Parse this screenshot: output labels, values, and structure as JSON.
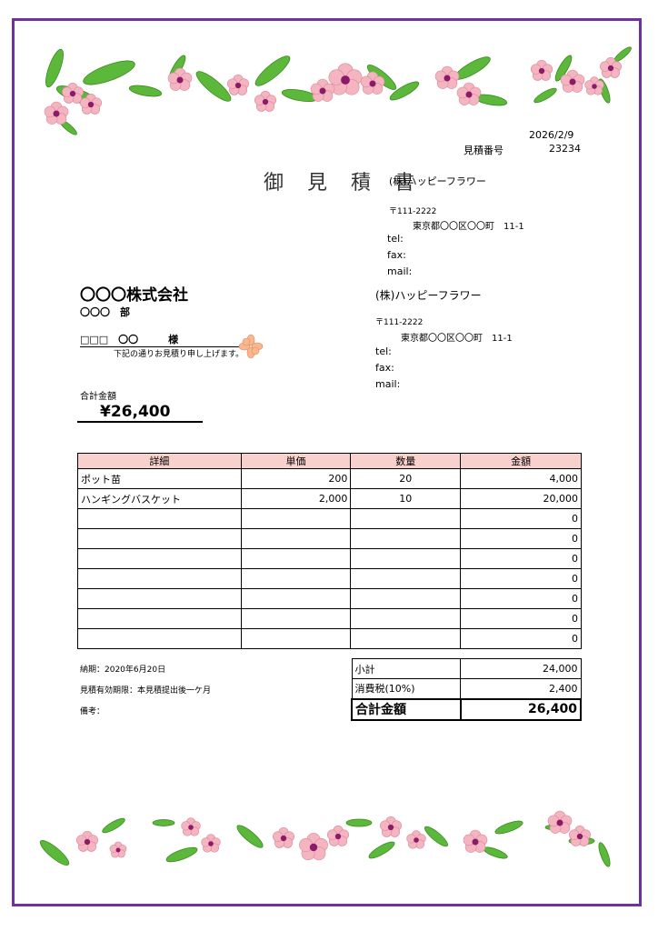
{
  "colors": {
    "border": "#7030a0",
    "header_bg": "#f8d0cc",
    "leaf": "#5cb83a",
    "petal": "#f4b4c0",
    "center": "#8b1a6b"
  },
  "header": {
    "date": "2026/2/9",
    "quote_no_label": "見積番号",
    "quote_no": "23234",
    "title": "御　見　積　書"
  },
  "sender_overlap": {
    "name": "(株)ハッピーフラワー",
    "postal": "〒111-2222",
    "address": "東京都〇〇区〇〇町　11-1",
    "tel": "tel:",
    "fax": "fax:",
    "mail": "mail:"
  },
  "sender": {
    "name": "(株)ハッピーフラワー",
    "postal": "〒111-2222",
    "address": "東京都〇〇区〇〇町　11-1",
    "tel": "tel:",
    "fax": "fax:",
    "mail": "mail:"
  },
  "client": {
    "company": "〇〇〇株式会社",
    "dept": "〇〇〇　部",
    "person": "□□□　〇〇　　　様",
    "greeting": "下記の通りお見積り申し上げます。"
  },
  "total": {
    "label": "合計金額",
    "amount": "¥26,400"
  },
  "table": {
    "headers": [
      "詳細",
      "単価",
      "数量",
      "金額"
    ],
    "rows": [
      [
        "ポット苗",
        "200",
        "20",
        "4,000"
      ],
      [
        "ハンギングバスケット",
        "2,000",
        "10",
        "20,000"
      ],
      [
        "",
        "",
        "",
        "0"
      ],
      [
        "",
        "",
        "",
        "0"
      ],
      [
        "",
        "",
        "",
        "0"
      ],
      [
        "",
        "",
        "",
        "0"
      ],
      [
        "",
        "",
        "",
        "0"
      ],
      [
        "",
        "",
        "",
        "0"
      ],
      [
        "",
        "",
        "",
        "0"
      ]
    ]
  },
  "notes": {
    "delivery": "納期：2020年6月20日",
    "validity": "見積有効期限：本見積提出後一ケ月",
    "remarks": "備考："
  },
  "summary": {
    "subtotal_label": "小計",
    "subtotal": "24,000",
    "tax_label": "消費税(10%)",
    "tax": "2,400",
    "total_label": "合計金額",
    "total": "26,400"
  }
}
